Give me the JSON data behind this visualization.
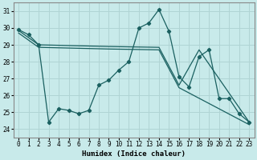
{
  "xlabel": "Humidex (Indice chaleur)",
  "background_color": "#c8eaea",
  "grid_color": "#b0d4d4",
  "line_color": "#1a6060",
  "xlim": [
    -0.5,
    23.5
  ],
  "ylim": [
    23.5,
    31.5
  ],
  "yticks": [
    24,
    25,
    26,
    27,
    28,
    29,
    30,
    31
  ],
  "xticks": [
    0,
    1,
    2,
    3,
    4,
    5,
    6,
    7,
    8,
    9,
    10,
    11,
    12,
    13,
    14,
    15,
    16,
    17,
    18,
    19,
    20,
    21,
    22,
    23
  ],
  "line1_x": [
    0,
    1,
    2,
    3,
    4,
    5,
    6,
    7,
    8,
    9,
    10,
    11,
    12,
    13,
    14,
    15,
    16,
    17,
    18,
    19,
    20,
    21,
    22,
    23
  ],
  "line1_y": [
    29.9,
    29.6,
    29.0,
    24.4,
    25.2,
    25.1,
    24.9,
    25.1,
    26.6,
    26.9,
    27.5,
    28.0,
    30.0,
    30.3,
    31.1,
    29.8,
    27.1,
    26.5,
    28.3,
    28.7,
    25.8,
    25.8,
    24.9,
    24.4
  ],
  "smooth1_x": [
    0,
    2,
    9,
    14,
    16,
    18,
    23
  ],
  "smooth1_y": [
    29.85,
    29.0,
    28.9,
    28.85,
    26.6,
    28.7,
    24.4
  ],
  "smooth2_x": [
    0,
    2,
    9,
    14,
    16,
    23
  ],
  "smooth2_y": [
    29.7,
    28.85,
    28.75,
    28.7,
    26.45,
    24.25
  ]
}
